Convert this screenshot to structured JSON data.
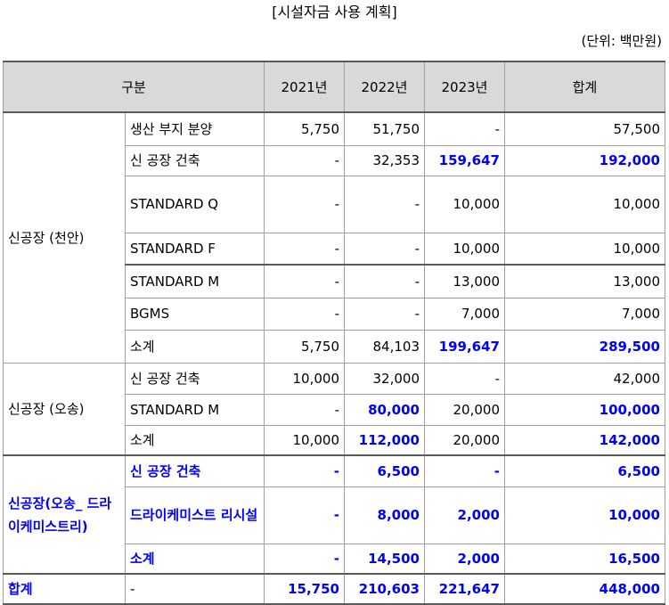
{
  "title": "[시설자금 사용 계획]",
  "unit": "(단위: 백만원)",
  "header": {
    "category": "구분",
    "y2021": "2021년",
    "y2022": "2022년",
    "y2023": "2023년",
    "total": "합계"
  },
  "groups": {
    "cheonan": {
      "name": "신공장 (천안)",
      "rows": [
        {
          "label": "생산 부지 분양",
          "v2021": "5,750",
          "v2022": "51,750",
          "v2023": "-",
          "total": "57,500"
        },
        {
          "label": "신 공장 건축",
          "v2021": "-",
          "v2022": "32,353",
          "v2023": "159,647",
          "total": "192,000"
        },
        {
          "label": "STANDARD Q",
          "v2021": "-",
          "v2022": "-",
          "v2023": "10,000",
          "total": "10,000"
        },
        {
          "label": "STANDARD F",
          "v2021": "-",
          "v2022": "-",
          "v2023": "10,000",
          "total": "10,000"
        },
        {
          "label": "STANDARD M",
          "v2021": "-",
          "v2022": "-",
          "v2023": "13,000",
          "total": "13,000"
        },
        {
          "label": "BGMS",
          "v2021": "-",
          "v2022": "-",
          "v2023": "7,000",
          "total": "7,000"
        },
        {
          "label": "소계",
          "v2021": "5,750",
          "v2022": "84,103",
          "v2023": "199,647",
          "total": "289,500"
        }
      ]
    },
    "osong": {
      "name": "신공장 (오송)",
      "rows": [
        {
          "label": "신 공장 건축",
          "v2021": "10,000",
          "v2022": "32,000",
          "v2023": "-",
          "total": "42,000"
        },
        {
          "label": "STANDARD M",
          "v2021": "-",
          "v2022": "80,000",
          "v2023": "20,000",
          "total": "100,000"
        },
        {
          "label": "소계",
          "v2021": "10,000",
          "v2022": "112,000",
          "v2023": "20,000",
          "total": "142,000"
        }
      ]
    },
    "dry": {
      "name": "신공장(오송_ 드라이케미스트리)",
      "rows": [
        {
          "label": "신 공장 건축",
          "v2021": "-",
          "v2022": "6,500",
          "v2023": "-",
          "total": "6,500"
        },
        {
          "label": "드라이케미스트 리시설",
          "v2021": "-",
          "v2022": "8,000",
          "v2023": "2,000",
          "total": "10,000"
        },
        {
          "label": "소계",
          "v2021": "-",
          "v2022": "14,500",
          "v2023": "2,000",
          "total": "16,500"
        }
      ]
    }
  },
  "grand_total": {
    "label": "합계",
    "item": "-",
    "v2021": "15,750",
    "v2022": "210,603",
    "v2023": "221,647",
    "total": "448,000"
  },
  "colors": {
    "highlight": "#0000ff",
    "header_bg": "#d9d9d9"
  }
}
